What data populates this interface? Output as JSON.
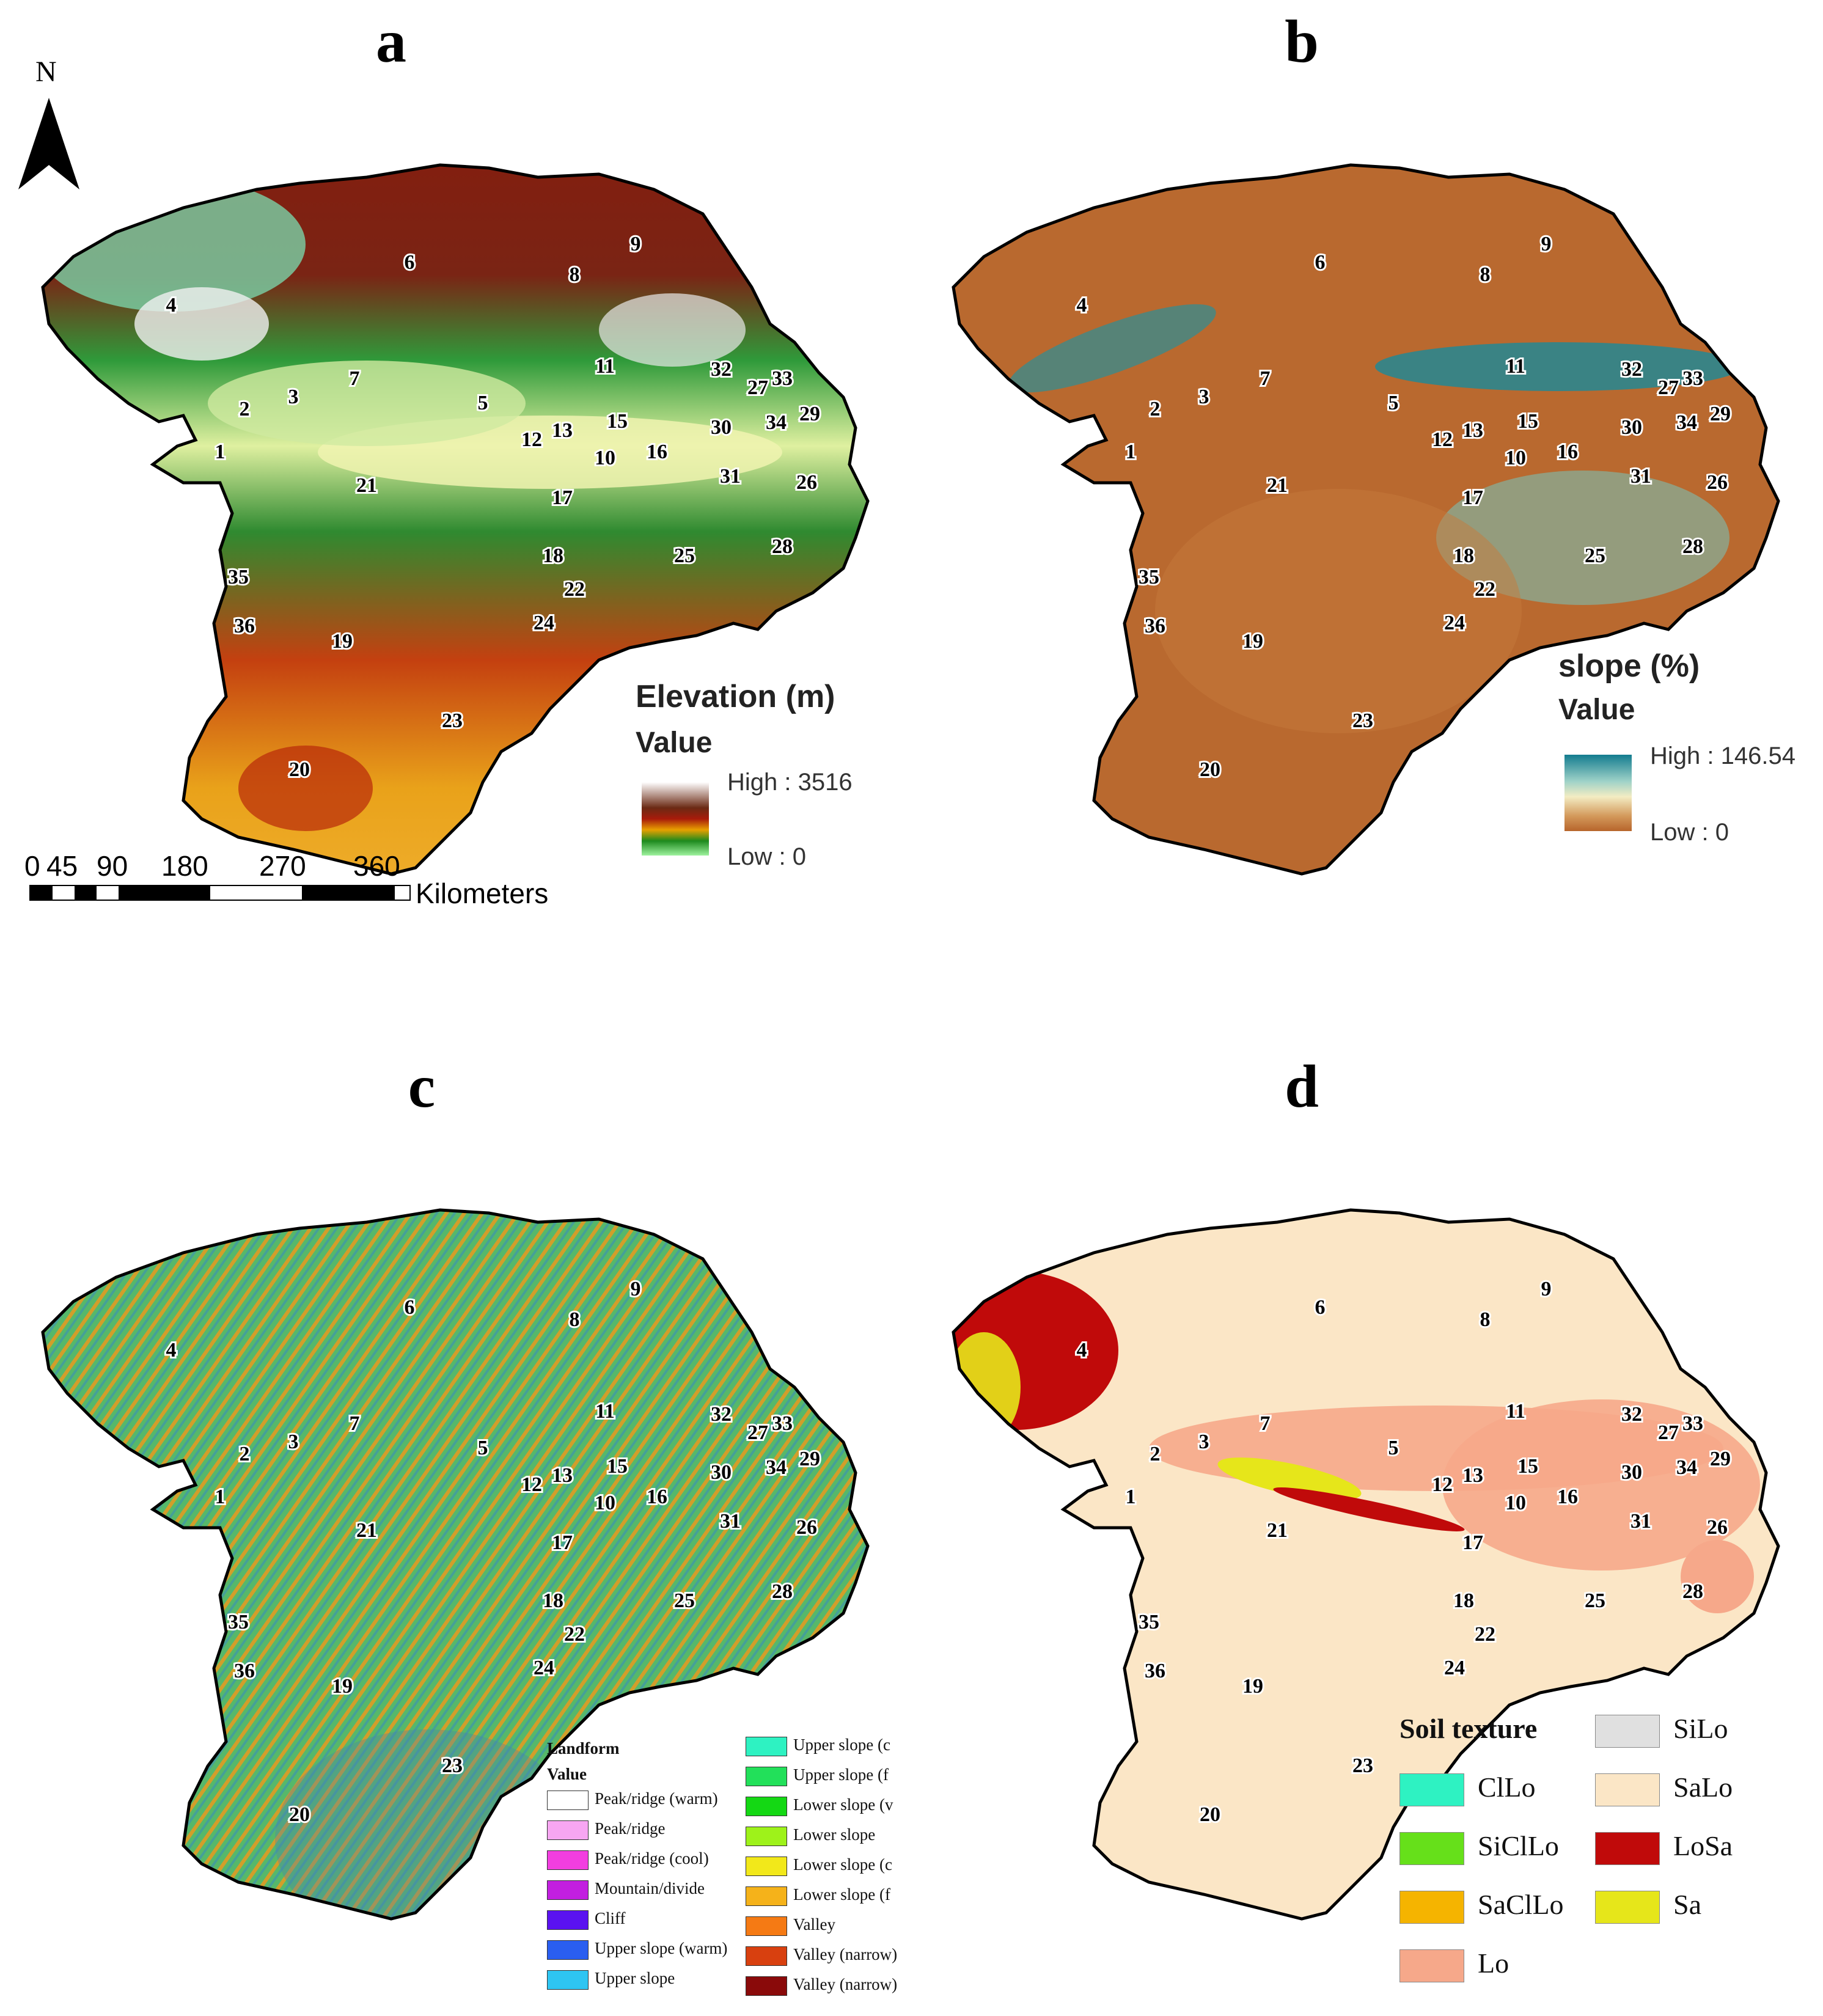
{
  "panels": {
    "a": {
      "letter": "a"
    },
    "b": {
      "letter": "b"
    },
    "c": {
      "letter": "c"
    },
    "d": {
      "letter": "d"
    }
  },
  "north_arrow": {
    "label": "N"
  },
  "scale_bar": {
    "ticks": [
      "0",
      "45",
      "90",
      "180",
      "270",
      "360"
    ],
    "unit": "Kilometers"
  },
  "elevation_legend": {
    "title": "Elevation (m)",
    "subtitle": "Value",
    "high": "High : 3516",
    "low": "Low : 0",
    "colors": [
      "#ffffff",
      "#6b2a14",
      "#a81b0b",
      "#e8a000",
      "#1d8a1d",
      "#9ef29e"
    ]
  },
  "slope_legend": {
    "title": "slope (%)",
    "subtitle": "Value",
    "high": "High : 146.54",
    "low": "Low : 0",
    "colors": [
      "#137c8f",
      "#9fd2c8",
      "#f3ecc3",
      "#d49a5c",
      "#b7652b"
    ]
  },
  "landform_legend": {
    "title": "Landform",
    "subtitle": "Value",
    "items_left": [
      {
        "label": "Peak/ridge (warm)",
        "color": "#ffffff"
      },
      {
        "label": "Peak/ridge",
        "color": "#f7a6f2"
      },
      {
        "label": "Peak/ridge (cool)",
        "color": "#f23ee0"
      },
      {
        "label": "Mountain/divide",
        "color": "#c21fe0"
      },
      {
        "label": "Cliff",
        "color": "#5a12f0"
      },
      {
        "label": "Upper slope (warm)",
        "color": "#2a5ef0"
      },
      {
        "label": "Upper slope",
        "color": "#2ec5f2"
      }
    ],
    "items_right": [
      {
        "label": "Upper slope (c",
        "color": "#2ef2c2"
      },
      {
        "label": "Upper slope (f",
        "color": "#22e05a"
      },
      {
        "label": "Lower slope (v",
        "color": "#14d814"
      },
      {
        "label": "Lower slope",
        "color": "#9ef21a"
      },
      {
        "label": "Lower slope (c",
        "color": "#f2e81a"
      },
      {
        "label": "Lower slope (f",
        "color": "#f5b21a"
      },
      {
        "label": "Valley",
        "color": "#f57a14"
      },
      {
        "label": "Valley (narrow)",
        "color": "#d8400f"
      },
      {
        "label": "Valley (narrow)",
        "color": "#8a0a0a"
      }
    ]
  },
  "soil_legend": {
    "title": "Soil texture",
    "items_left": [
      {
        "label": "ClLo",
        "color": "#2ef2c2"
      },
      {
        "label": "SiClLo",
        "color": "#66e01a"
      },
      {
        "label": "SaClLo",
        "color": "#f5b400"
      },
      {
        "label": "Lo",
        "color": "#f6a88a"
      }
    ],
    "items_right": [
      {
        "label": "SiLo",
        "color": "#e0e0e0"
      },
      {
        "label": "SaLo",
        "color": "#fbe6c6"
      },
      {
        "label": "LoSa",
        "color": "#c00a0a"
      },
      {
        "label": "Sa",
        "color": "#e6e61a"
      }
    ]
  },
  "regions": [
    "1",
    "2",
    "3",
    "4",
    "5",
    "6",
    "7",
    "8",
    "9",
    "10",
    "11",
    "12",
    "13",
    "15",
    "16",
    "17",
    "18",
    "19",
    "20",
    "21",
    "22",
    "23",
    "24",
    "25",
    "26",
    "27",
    "28",
    "29",
    "30",
    "31",
    "32",
    "33",
    "34",
    "35",
    "36"
  ],
  "map_fills": {
    "a": "#4fa83a",
    "b": "#b9692f",
    "c": "#4fa86e",
    "d": "#fbe6c6"
  }
}
